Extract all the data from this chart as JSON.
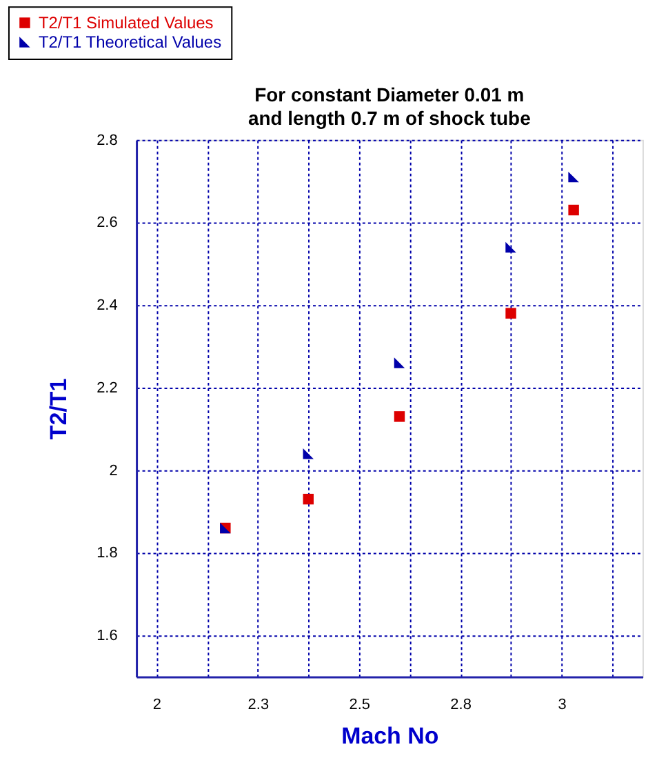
{
  "chart_data": {
    "type": "scatter",
    "title": [
      "For constant Diameter 0.01 m",
      "and length 0.7 m of shock tube"
    ],
    "xlabel": "Mach No",
    "ylabel": "T2/T1",
    "x": [
      2.17,
      2.375,
      2.6,
      2.875,
      3.03
    ],
    "series": [
      {
        "name": "T2/T1 Simulated Values",
        "color": "#dd0000",
        "marker": "square",
        "values": [
          1.86,
          1.93,
          2.13,
          2.38,
          2.63
        ]
      },
      {
        "name": "T2/T1 Theoretical Values",
        "color": "#0000aa",
        "marker": "triangle",
        "values": [
          1.86,
          2.04,
          2.26,
          2.54,
          2.71
        ]
      }
    ],
    "xlim": [
      1.95,
      3.2
    ],
    "xticks": [
      2,
      {
        "value": 2.125,
        "label": null
      },
      {
        "value": 2.25,
        "label": "2.3"
      },
      {
        "value": 2.375,
        "label": null
      },
      2.5,
      {
        "value": 2.625,
        "label": null
      },
      {
        "value": 2.75,
        "label": "2.8"
      },
      {
        "value": 2.875,
        "label": null
      },
      3,
      {
        "value": 3.125,
        "label": null
      }
    ],
    "ylim": [
      1.5,
      2.8
    ],
    "yticks": [
      1.6,
      1.8,
      2,
      2.2,
      2.4,
      2.6,
      2.8
    ],
    "grid": true,
    "legend": "top left"
  }
}
